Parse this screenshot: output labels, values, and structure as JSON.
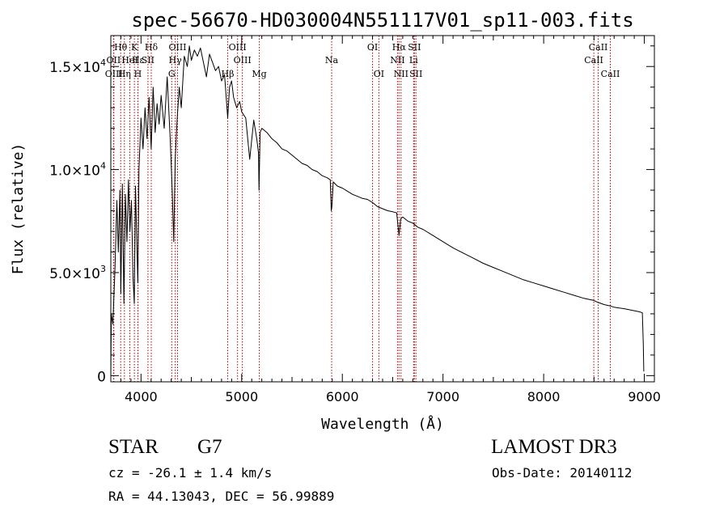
{
  "chart_data": {
    "type": "line",
    "title": "spec-56670-HD030004N551117V01_sp11-003.fits",
    "xlabel": "Wavelength (Å)",
    "ylabel": "Flux (relative)",
    "xlim": [
      3700,
      9100
    ],
    "ylim": [
      -300,
      16500
    ],
    "x_ticks": [
      4000,
      5000,
      6000,
      7000,
      8000,
      9000
    ],
    "x_tick_labels": [
      "4000",
      "5000",
      "6000",
      "7000",
      "8000",
      "9000"
    ],
    "y_ticks": [
      0,
      5000,
      10000,
      15000
    ],
    "y_tick_labels": [
      {
        "base": "0",
        "exp": ""
      },
      {
        "base": "5.0×10",
        "exp": "3"
      },
      {
        "base": "1.0×10",
        "exp": "4"
      },
      {
        "base": "1.5×10",
        "exp": "4"
      }
    ],
    "series": [
      {
        "name": "spectrum",
        "x": [
          3700,
          3705,
          3720,
          3740,
          3760,
          3775,
          3790,
          3800,
          3815,
          3830,
          3845,
          3860,
          3875,
          3890,
          3905,
          3920,
          3933,
          3945,
          3960,
          3968,
          3980,
          4000,
          4020,
          4040,
          4060,
          4080,
          4101,
          4120,
          4140,
          4160,
          4180,
          4200,
          4230,
          4260,
          4290,
          4310,
          4325,
          4340,
          4360,
          4380,
          4400,
          4430,
          4460,
          4480,
          4500,
          4530,
          4560,
          4590,
          4620,
          4650,
          4680,
          4710,
          4740,
          4770,
          4800,
          4830,
          4861,
          4880,
          4900,
          4920,
          4950,
          4980,
          5000,
          5040,
          5080,
          5120,
          5150,
          5167,
          5172,
          5183,
          5200,
          5250,
          5300,
          5350,
          5400,
          5450,
          5500,
          5550,
          5600,
          5650,
          5700,
          5750,
          5800,
          5850,
          5880,
          5890,
          5896,
          5910,
          5950,
          6000,
          6050,
          6100,
          6150,
          6200,
          6250,
          6300,
          6350,
          6400,
          6450,
          6500,
          6540,
          6563,
          6580,
          6600,
          6650,
          6700,
          6750,
          6800,
          6900,
          7000,
          7100,
          7200,
          7300,
          7400,
          7500,
          7600,
          7700,
          7800,
          7900,
          8000,
          8100,
          8200,
          8300,
          8400,
          8498,
          8542,
          8600,
          8662,
          8700,
          8800,
          8900,
          8950,
          8980,
          8990,
          8995
        ],
        "y": [
          0,
          3000,
          2500,
          5000,
          8500,
          6000,
          9000,
          4000,
          9300,
          3500,
          8800,
          6500,
          9500,
          7000,
          8500,
          4800,
          3500,
          9200,
          6000,
          4500,
          10000,
          12500,
          11000,
          13000,
          11500,
          13500,
          11000,
          14000,
          11800,
          13200,
          12200,
          13600,
          12000,
          14500,
          11500,
          9000,
          6500,
          10500,
          12500,
          14000,
          13000,
          15500,
          15000,
          16000,
          15300,
          15800,
          15500,
          15900,
          15200,
          14500,
          15600,
          15200,
          14800,
          15000,
          14300,
          14600,
          12500,
          14000,
          14300,
          13500,
          13000,
          13300,
          12800,
          12500,
          10500,
          12400,
          11500,
          10800,
          9000,
          11800,
          12000,
          11800,
          11500,
          11300,
          11000,
          10900,
          10700,
          10500,
          10300,
          10200,
          10000,
          9900,
          9700,
          9600,
          9500,
          8000,
          8200,
          9400,
          9200,
          9100,
          8950,
          8800,
          8700,
          8600,
          8550,
          8400,
          8200,
          8100,
          8000,
          7950,
          7900,
          6800,
          7600,
          7700,
          7500,
          7400,
          7200,
          7100,
          6800,
          6500,
          6200,
          5950,
          5700,
          5450,
          5250,
          5050,
          4850,
          4650,
          4500,
          4350,
          4200,
          4050,
          3900,
          3750,
          3650,
          3550,
          3450,
          3380,
          3320,
          3250,
          3150,
          3100,
          3050,
          1500,
          200
        ]
      }
    ],
    "line_markers": [
      {
        "name": "Hθ",
        "x": 3798,
        "row": 0
      },
      {
        "name": "OII",
        "x": 3727,
        "row": 1
      },
      {
        "name": "OIII",
        "x": 3730,
        "row": 2
      },
      {
        "name": "Hε",
        "x": 3970,
        "row": 1
      },
      {
        "name": "HeI",
        "x": 3889,
        "row": 1
      },
      {
        "name": "Hη",
        "x": 3835,
        "row": 2
      },
      {
        "name": "K",
        "x": 3934,
        "row": 0
      },
      {
        "name": "H",
        "x": 3969,
        "row": 2
      },
      {
        "name": "SII",
        "x": 4069,
        "row": 1
      },
      {
        "name": "Hδ",
        "x": 4102,
        "row": 0
      },
      {
        "name": "OIII",
        "x": 4363,
        "row": 0
      },
      {
        "name": "Hγ",
        "x": 4340,
        "row": 1
      },
      {
        "name": "G",
        "x": 4305,
        "row": 2
      },
      {
        "name": "Hβ",
        "x": 4861,
        "row": 2
      },
      {
        "name": "OIII",
        "x": 4959,
        "row": 0
      },
      {
        "name": "OIII",
        "x": 5007,
        "row": 1
      },
      {
        "name": "Mg",
        "x": 5175,
        "row": 2
      },
      {
        "name": "Na",
        "x": 5894,
        "row": 1
      },
      {
        "name": "OI",
        "x": 6300,
        "row": 0
      },
      {
        "name": "OI",
        "x": 6363,
        "row": 2
      },
      {
        "name": "Hα",
        "x": 6563,
        "row": 0
      },
      {
        "name": "NII",
        "x": 6548,
        "row": 1
      },
      {
        "name": "NII",
        "x": 6583,
        "row": 2
      },
      {
        "name": "SII",
        "x": 6716,
        "row": 0
      },
      {
        "name": "Li",
        "x": 6708,
        "row": 1
      },
      {
        "name": "SII",
        "x": 6731,
        "row": 2
      },
      {
        "name": "CaII",
        "x": 8498,
        "row": 1
      },
      {
        "name": "CaII",
        "x": 8542,
        "row": 0
      },
      {
        "name": "CaII",
        "x": 8662,
        "row": 2
      }
    ]
  },
  "info": {
    "obj_class": "STAR",
    "subclass": "G7",
    "survey": "LAMOST DR3",
    "cz": "cz = -26.1 ± 1.4 km/s",
    "obs_date": "Obs-Date: 20140112",
    "radec": "RA =  44.13043, DEC =  56.99889"
  }
}
